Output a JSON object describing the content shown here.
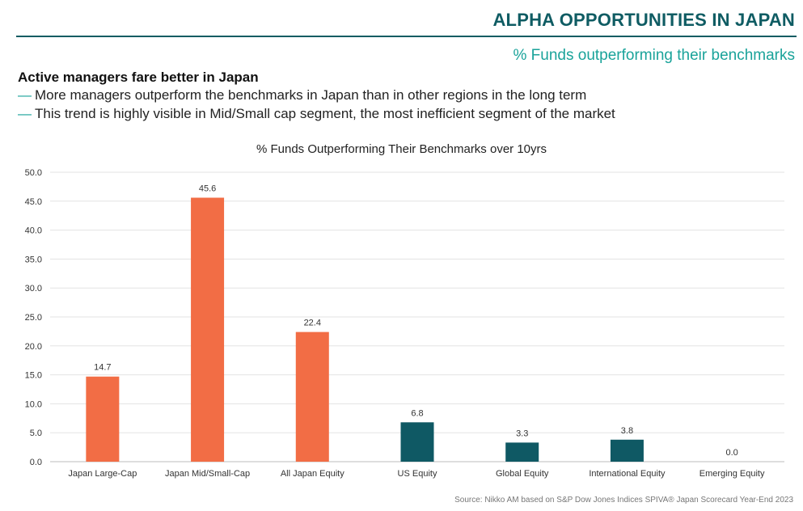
{
  "header": {
    "title": "ALPHA OPPORTUNITIES IN JAPAN",
    "subtitle": "% Funds outperforming their benchmarks"
  },
  "summary": {
    "heading": "Active managers fare better in Japan",
    "dash": "—",
    "bullets": [
      "More managers outperform the benchmarks in Japan than in other regions in the long term",
      "This trend is highly visible in Mid/Small cap segment, the most inefficient segment of the market"
    ]
  },
  "chart_data": {
    "type": "bar",
    "title": "% Funds Outperforming Their Benchmarks over 10yrs",
    "categories": [
      "Japan Large-Cap",
      "Japan Mid/Small-Cap",
      "All Japan Equity",
      "US Equity",
      "Global Equity",
      "International Equity",
      "Emerging Equity"
    ],
    "values": [
      14.7,
      45.6,
      22.4,
      6.8,
      3.3,
      3.8,
      0.0
    ],
    "value_labels": [
      "14.7",
      "45.6",
      "22.4",
      "6.8",
      "3.3",
      "3.8",
      "0.0"
    ],
    "bar_groups": [
      "japan",
      "japan",
      "japan",
      "other",
      "other",
      "other",
      "other"
    ],
    "colors": {
      "japan": "#f26d45",
      "other": "#0f5964"
    },
    "ylim": [
      0,
      50
    ],
    "yticks": [
      "0.0",
      "5.0",
      "10.0",
      "15.0",
      "20.0",
      "25.0",
      "30.0",
      "35.0",
      "40.0",
      "45.0",
      "50.0"
    ],
    "grid": true,
    "xlabel": "",
    "ylabel": ""
  },
  "footer": {
    "source": "Source: Nikko AM based on S&P Dow Jones Indices SPIVA® Japan Scorecard Year-End 2023"
  }
}
